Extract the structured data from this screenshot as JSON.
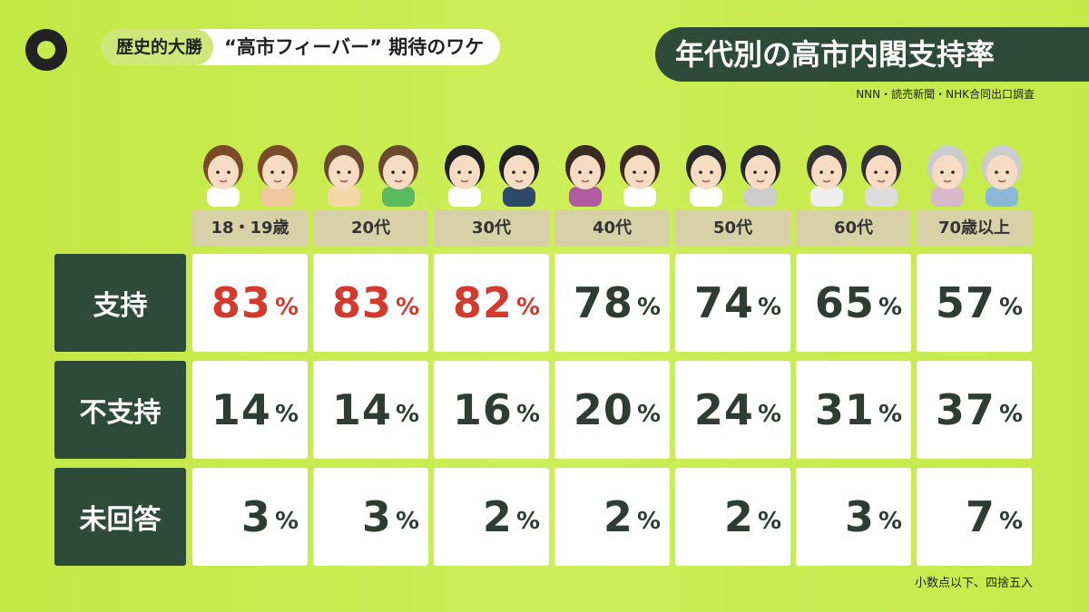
{
  "header": {
    "section_tag": "歴史的大勝",
    "headline": "“高市フィーバー” 期待のワケ",
    "title": "年代別の高市内閣支持率",
    "source": "NNN・読売新聞・NHK合同出口調査",
    "note": "小数点以下、四捨五入"
  },
  "colors": {
    "background": "#c5ea4c",
    "dark_green": "#2d4a3b",
    "highlight_red": "#d33a2e",
    "age_label_bg": "#d8d0a6"
  },
  "chart_data": {
    "type": "table",
    "title": "年代別の高市内閣支持率",
    "columns": [
      "18・19歳",
      "20代",
      "30代",
      "40代",
      "50代",
      "60代",
      "70歳以上"
    ],
    "unit": "%",
    "rows": [
      {
        "label": "支持",
        "values": [
          83,
          83,
          82,
          78,
          74,
          65,
          57
        ],
        "highlighted": [
          true,
          true,
          true,
          false,
          false,
          false,
          false
        ]
      },
      {
        "label": "不支持",
        "values": [
          14,
          14,
          16,
          20,
          24,
          31,
          37
        ]
      },
      {
        "label": "未回答",
        "values": [
          3,
          3,
          2,
          2,
          2,
          3,
          7
        ]
      }
    ]
  }
}
